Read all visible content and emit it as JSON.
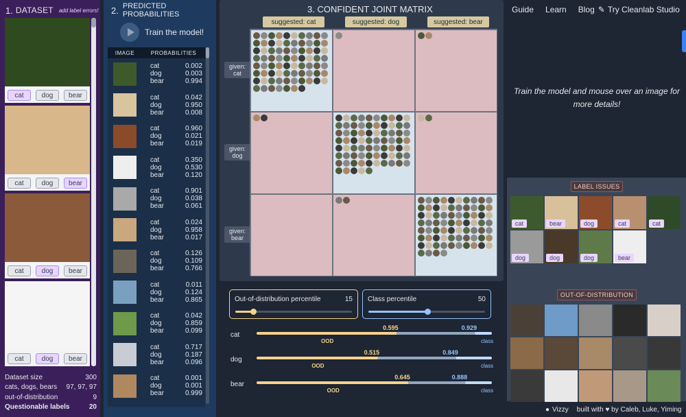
{
  "dataset": {
    "number": "1.",
    "title": "DATASET",
    "hint": "add label errors!",
    "items": [
      {
        "color": "#2f4a1f",
        "selected": "cat"
      },
      {
        "color": "#d8b88a",
        "selected": "bear"
      },
      {
        "color": "#8a5a3a",
        "selected": "dog"
      },
      {
        "color": "#f5f5f5",
        "selected": "dog"
      }
    ],
    "btn_labels": [
      "cat",
      "dog",
      "bear"
    ],
    "stats": [
      {
        "label": "Dataset size",
        "value": "300",
        "bold": false
      },
      {
        "label": "cats, dogs, bears",
        "value": "97, 97, 97",
        "bold": false
      },
      {
        "label": "out-of-distribution",
        "value": "9",
        "bold": false
      },
      {
        "label": "Questionable labels",
        "value": "20",
        "bold": true
      }
    ]
  },
  "probs": {
    "number": "2.",
    "title": "PREDICTED PROBABILITIES",
    "train_label": "Train the model!",
    "col_image": "IMAGE",
    "col_probs": "PROBABILITIES",
    "class_names": [
      "cat",
      "dog",
      "bear"
    ],
    "rows": [
      {
        "color": "#3f5a2a",
        "vals": [
          "0.002",
          "0.003",
          "0.994"
        ]
      },
      {
        "color": "#d9c4a0",
        "vals": [
          "0.042",
          "0.950",
          "0.008"
        ]
      },
      {
        "color": "#8b4a2a",
        "vals": [
          "0.960",
          "0.021",
          "0.019"
        ]
      },
      {
        "color": "#eeeeee",
        "vals": [
          "0.350",
          "0.530",
          "0.120"
        ]
      },
      {
        "color": "#a9a9a9",
        "vals": [
          "0.901",
          "0.038",
          "0.061"
        ]
      },
      {
        "color": "#c9a880",
        "vals": [
          "0.024",
          "0.958",
          "0.017"
        ]
      },
      {
        "color": "#6b6458",
        "vals": [
          "0.126",
          "0.109",
          "0.766"
        ]
      },
      {
        "color": "#7aa0c0",
        "vals": [
          "0.011",
          "0.124",
          "0.865"
        ]
      },
      {
        "color": "#6f9a4a",
        "vals": [
          "0.042",
          "0.859",
          "0.099"
        ]
      },
      {
        "color": "#c8ccd4",
        "vals": [
          "0.717",
          "0.187",
          "0.096"
        ]
      },
      {
        "color": "#b08860",
        "vals": [
          "0.001",
          "0.001",
          "0.999"
        ]
      }
    ]
  },
  "matrix": {
    "number": "3.",
    "title": "CONFIDENT JOINT MATRIX",
    "suggested": [
      "suggested: cat",
      "suggested: dog",
      "suggested: bear"
    ],
    "given": [
      "given:\ncat",
      "given:\ndog",
      "given:\nbear"
    ],
    "counts": [
      [
        77,
        1,
        2
      ],
      [
        2,
        75,
        2
      ],
      [
        0,
        2,
        74
      ]
    ],
    "diag_color": "#d7e3ec",
    "off_color": "#dcbcc0"
  },
  "sliders": {
    "ood": {
      "label": "Out-of-distribution percentile",
      "value": "15",
      "color": "#f6d38b"
    },
    "cls": {
      "label": "Class percentile",
      "value": "50",
      "color": "#93c5fd"
    }
  },
  "bars": [
    {
      "name": "cat",
      "ood": 0.595,
      "cls": 0.929,
      "ood_text": "0.595",
      "cls_text": "0.929"
    },
    {
      "name": "dog",
      "ood": 0.515,
      "cls": 0.849,
      "ood_text": "0.515",
      "cls_text": "0.849"
    },
    {
      "name": "bear",
      "ood": 0.645,
      "cls": 0.888,
      "ood_text": "0.645",
      "cls_text": "0.888"
    }
  ],
  "bar_tags": {
    "ood": "OOD",
    "cls": "class"
  },
  "nav": {
    "guide": "Guide",
    "learn": "Learn",
    "blog": "Blog",
    "studio": "Try Cleanlab Studio"
  },
  "hover_hint": "Train the model and mouse over an image for more details!",
  "label_issues": {
    "title": "LABEL ISSUES",
    "items": [
      {
        "color": "#3d5a2e",
        "label": "cat"
      },
      {
        "color": "#d8c09a",
        "label": "bear"
      },
      {
        "color": "#8c4c2c",
        "label": "dog"
      },
      {
        "color": "#b89070",
        "label": "cat"
      },
      {
        "color": "#2f4a28",
        "label": "cat"
      },
      {
        "color": "#9a9a9a",
        "label": "dog"
      },
      {
        "color": "#4a3828",
        "label": "dog"
      },
      {
        "color": "#5e7a48",
        "label": "dog"
      },
      {
        "color": "#eeeeee",
        "label": "bear"
      }
    ]
  },
  "ood": {
    "title": "OUT-OF-DISTRIBUTION",
    "items": [
      "#4a4038",
      "#6f9bc8",
      "#8a8a8a",
      "#2a2a2a",
      "#d8d0c8",
      "#8a6a48",
      "#5a4838",
      "#a88a68",
      "#4a4a4a",
      "#383838",
      "#3a3a3a",
      "#e8e8e8",
      "#c09a78",
      "#a89888",
      "#6a8a58"
    ]
  },
  "footer": {
    "vizzy": "Vizzy",
    "credit": "built with ♥ by Caleb, Luke, Yiming"
  }
}
